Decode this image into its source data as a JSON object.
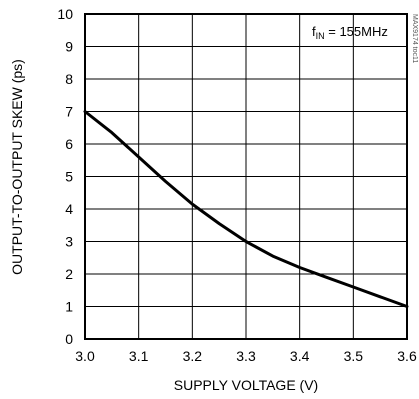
{
  "chart_data": {
    "type": "line",
    "xlabel": "SUPPLY VOLTAGE (V)",
    "ylabel": "OUTPUT-TO-OUTPUT SKEW (ps)",
    "xlim": [
      3.0,
      3.6
    ],
    "ylim": [
      0,
      10
    ],
    "x_ticks": [
      "3.0",
      "3.1",
      "3.2",
      "3.3",
      "3.4",
      "3.5",
      "3.6"
    ],
    "y_ticks": [
      "0",
      "1",
      "2",
      "3",
      "4",
      "5",
      "6",
      "7",
      "8",
      "9",
      "10"
    ],
    "grid": true,
    "annotation": {
      "prefix": "f",
      "subscript": "IN",
      "suffix": " = 155MHz"
    },
    "watermark": "MAX9174 toc11",
    "series": [
      {
        "x": [
          3.0,
          3.05,
          3.1,
          3.15,
          3.2,
          3.25,
          3.3,
          3.35,
          3.4,
          3.45,
          3.5,
          3.55,
          3.6
        ],
        "y": [
          7.0,
          6.35,
          5.6,
          4.85,
          4.15,
          3.55,
          3.0,
          2.55,
          2.2,
          1.9,
          1.6,
          1.3,
          1.0
        ],
        "color": "#000000"
      }
    ]
  }
}
